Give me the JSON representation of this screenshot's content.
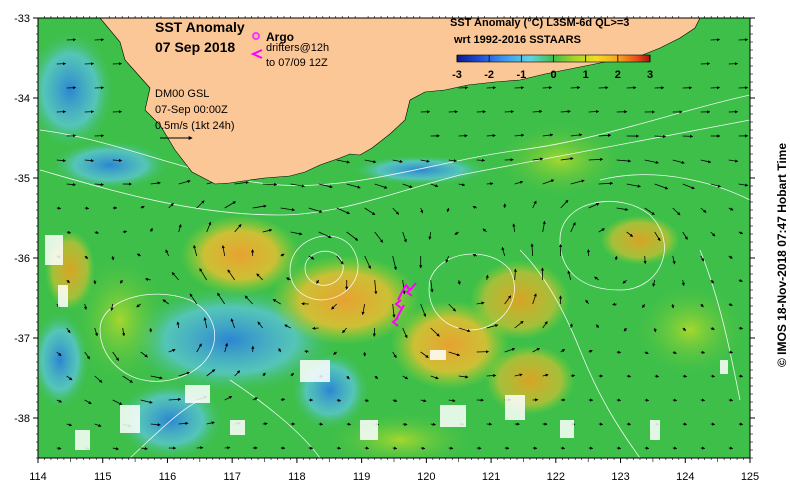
{
  "title": {
    "line1": "SST Anomaly",
    "line2": "07 Sep 2018"
  },
  "legend_argo": {
    "argo_label": "Argo",
    "drifters_label": "drifters@12h",
    "drifters_range": "to 07/09 12Z",
    "argo_color": "#ff33ff",
    "drifter_color": "#ff00ff"
  },
  "current_info": {
    "model": "DM00 GSL",
    "time": "07-Sep 00:00Z",
    "scale": "0.5m/s (1kt 24h)"
  },
  "colorbar": {
    "title_line1": "SST Anomaly (°C) L3SM-6d QL>=3",
    "title_line2": "wrt 1992-2016 SSTAARS",
    "ticks": [
      "-3",
      "-2",
      "-1",
      "0",
      "1",
      "2",
      "3"
    ],
    "colors": [
      "#0b1a8c",
      "#1f4fd8",
      "#3a9bf0",
      "#5fd3e6",
      "#3dbf4a",
      "#9cd62a",
      "#f0e020",
      "#f5a020",
      "#e8501a",
      "#b01010"
    ]
  },
  "axes": {
    "x_ticks": [
      "114",
      "115",
      "116",
      "117",
      "118",
      "119",
      "120",
      "121",
      "122",
      "123",
      "124",
      "125"
    ],
    "y_ticks": [
      "-33",
      "-34",
      "-35",
      "-36",
      "-37",
      "-38"
    ],
    "xlim": [
      114,
      125
    ],
    "ylim": [
      -38.5,
      -33
    ]
  },
  "colors": {
    "land": "#fcc796",
    "ocean_base": "#3dbf4a"
  },
  "credit": "© IMOS 18-Nov-2018 07:47 Hobart Time"
}
